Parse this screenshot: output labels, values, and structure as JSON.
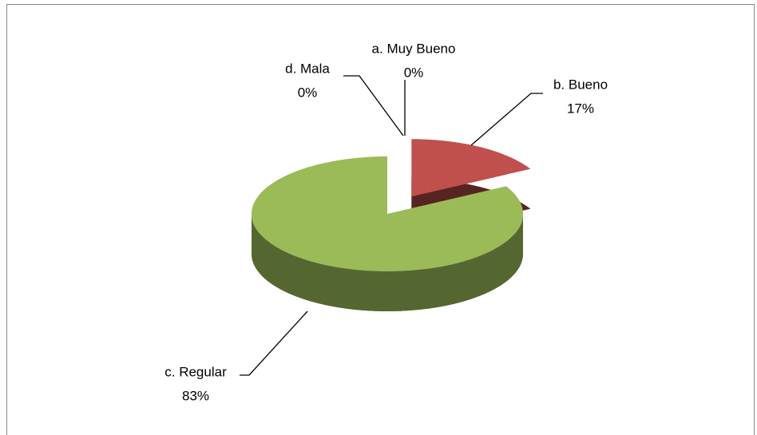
{
  "chart_data": {
    "type": "pie",
    "categories": [
      "a. Muy Bueno",
      "b. Bueno",
      "c. Regular",
      "d. Mala"
    ],
    "values": [
      0,
      17,
      83,
      0
    ],
    "value_labels": [
      "0%",
      "17%",
      "83%",
      "0%"
    ],
    "colors": [
      "#4f81bd",
      "#c0504d",
      "#9bbb59",
      "#8064a2"
    ],
    "exploded": "b. Bueno"
  }
}
